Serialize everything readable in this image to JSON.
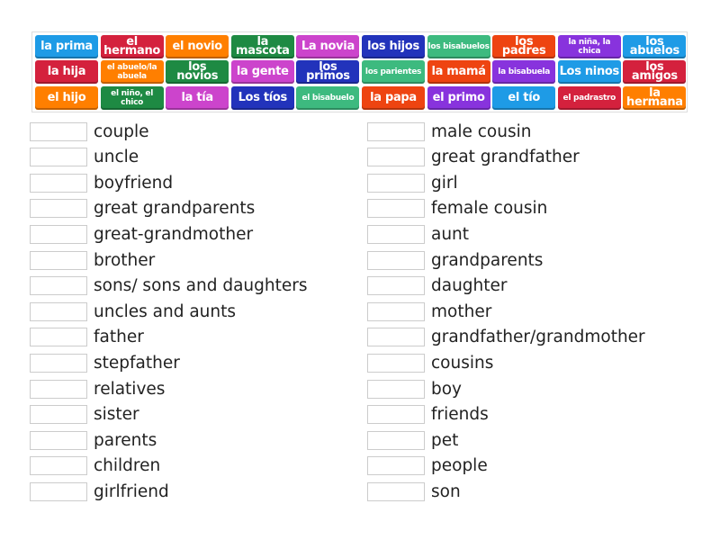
{
  "tiles": [
    {
      "label": "la prima",
      "color": "#1e9be6"
    },
    {
      "label": "el hermano",
      "color": "#d4213d"
    },
    {
      "label": "el novio",
      "color": "#ff7f00"
    },
    {
      "label": "la mascota",
      "color": "#1e8a43"
    },
    {
      "label": "La novia",
      "color": "#cc44cc"
    },
    {
      "label": "los hijos",
      "color": "#2233bb"
    },
    {
      "label": "los bisabuelos",
      "color": "#3dba7f"
    },
    {
      "label": "los padres",
      "color": "#ee4411"
    },
    {
      "label": "la niña, la chica",
      "color": "#8833dd"
    },
    {
      "label": "los abuelos",
      "color": "#1e9be6"
    },
    {
      "label": "la hija",
      "color": "#d4213d"
    },
    {
      "label": "el abuelo/la abuela",
      "color": "#ff7f00"
    },
    {
      "label": "los novios",
      "color": "#1e8a43"
    },
    {
      "label": "la gente",
      "color": "#cc44cc"
    },
    {
      "label": "los primos",
      "color": "#2233bb"
    },
    {
      "label": "los parientes",
      "color": "#3dba7f"
    },
    {
      "label": "la mamá",
      "color": "#ee4411"
    },
    {
      "label": "la bisabuela",
      "color": "#8833dd"
    },
    {
      "label": "Los ninos",
      "color": "#1e9be6"
    },
    {
      "label": "los amigos",
      "color": "#d4213d"
    },
    {
      "label": "el hijo",
      "color": "#ff7f00"
    },
    {
      "label": "el niño, el chico",
      "color": "#1e8a43"
    },
    {
      "label": "la tía",
      "color": "#cc44cc"
    },
    {
      "label": "Los tíos",
      "color": "#2233bb"
    },
    {
      "label": "el bisabuelo",
      "color": "#3dba7f"
    },
    {
      "label": "la papa",
      "color": "#ee4411"
    },
    {
      "label": "el primo",
      "color": "#8833dd"
    },
    {
      "label": "el tío",
      "color": "#1e9be6"
    },
    {
      "label": "el padrastro",
      "color": "#d4213d"
    },
    {
      "label": "la hermana",
      "color": "#ff7f00"
    }
  ],
  "left": [
    "couple",
    "uncle",
    "boyfriend",
    "great grandparents",
    "great-grandmother",
    "brother",
    "sons/ sons and daughters",
    "uncles and aunts",
    "father",
    "stepfather",
    "relatives",
    "sister",
    "parents",
    "children",
    "girlfriend"
  ],
  "right": [
    "male cousin",
    "great grandfather",
    "girl",
    "female cousin",
    "aunt",
    "grandparents",
    "daughter",
    "mother",
    "grandfather/grandmother",
    "cousins",
    "boy",
    "friends",
    "pet",
    "people",
    "son"
  ]
}
